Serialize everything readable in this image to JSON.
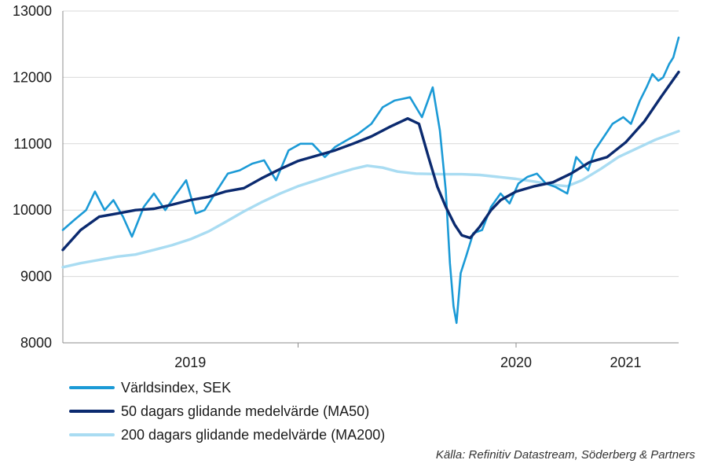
{
  "chart_data": {
    "type": "line",
    "ylim": [
      8000,
      13000
    ],
    "yticks": [
      "8000",
      "9000",
      "10000",
      "11000",
      "12000",
      "13000"
    ],
    "xlim": [
      "2018-06-01",
      "2021-03-31"
    ],
    "x_labels": [
      {
        "label": "2019",
        "date": "2019-01-01"
      },
      {
        "label": "2020",
        "date": "2020-07-01"
      },
      {
        "label": "2021",
        "date": "2021-01-01"
      }
    ],
    "x_dividers": [
      "2019-07-01",
      "2020-07-01"
    ],
    "grid": "horizontal",
    "legend_position": "bottom",
    "series": [
      {
        "name": "Världsindex, SEK",
        "color": "#1b9ad6",
        "points": [
          [
            "2018-06-01",
            9700
          ],
          [
            "2018-06-20",
            9850
          ],
          [
            "2018-07-10",
            10000
          ],
          [
            "2018-07-25",
            10280
          ],
          [
            "2018-08-10",
            10000
          ],
          [
            "2018-08-25",
            10150
          ],
          [
            "2018-09-10",
            9900
          ],
          [
            "2018-09-25",
            9600
          ],
          [
            "2018-10-15",
            10050
          ],
          [
            "2018-11-01",
            10250
          ],
          [
            "2018-11-20",
            10000
          ],
          [
            "2018-12-05",
            10200
          ],
          [
            "2018-12-25",
            10450
          ],
          [
            "2019-01-10",
            9950
          ],
          [
            "2019-01-25",
            10000
          ],
          [
            "2019-02-15",
            10300
          ],
          [
            "2019-03-05",
            10550
          ],
          [
            "2019-03-25",
            10600
          ],
          [
            "2019-04-15",
            10700
          ],
          [
            "2019-05-05",
            10750
          ],
          [
            "2019-05-25",
            10450
          ],
          [
            "2019-06-15",
            10900
          ],
          [
            "2019-07-05",
            11000
          ],
          [
            "2019-07-25",
            11000
          ],
          [
            "2019-08-15",
            10800
          ],
          [
            "2019-09-01",
            10950
          ],
          [
            "2019-09-20",
            11050
          ],
          [
            "2019-10-10",
            11150
          ],
          [
            "2019-11-01",
            11300
          ],
          [
            "2019-11-20",
            11550
          ],
          [
            "2019-12-10",
            11650
          ],
          [
            "2020-01-05",
            11700
          ],
          [
            "2020-01-25",
            11400
          ],
          [
            "2020-02-12",
            11850
          ],
          [
            "2020-02-24",
            11200
          ],
          [
            "2020-03-05",
            10300
          ],
          [
            "2020-03-12",
            9200
          ],
          [
            "2020-03-18",
            8550
          ],
          [
            "2020-03-23",
            8300
          ],
          [
            "2020-03-30",
            9050
          ],
          [
            "2020-04-08",
            9300
          ],
          [
            "2020-04-20",
            9650
          ],
          [
            "2020-05-05",
            9700
          ],
          [
            "2020-05-20",
            10050
          ],
          [
            "2020-06-05",
            10250
          ],
          [
            "2020-06-20",
            10100
          ],
          [
            "2020-07-05",
            10400
          ],
          [
            "2020-07-20",
            10500
          ],
          [
            "2020-08-05",
            10550
          ],
          [
            "2020-08-20",
            10400
          ],
          [
            "2020-09-05",
            10350
          ],
          [
            "2020-09-25",
            10250
          ],
          [
            "2020-10-10",
            10800
          ],
          [
            "2020-10-30",
            10600
          ],
          [
            "2020-11-10",
            10900
          ],
          [
            "2020-11-25",
            11100
          ],
          [
            "2020-12-10",
            11300
          ],
          [
            "2020-12-28",
            11400
          ],
          [
            "2021-01-10",
            11300
          ],
          [
            "2021-01-25",
            11650
          ],
          [
            "2021-02-05",
            11850
          ],
          [
            "2021-02-15",
            12050
          ],
          [
            "2021-02-25",
            11950
          ],
          [
            "2021-03-05",
            12000
          ],
          [
            "2021-03-15",
            12200
          ],
          [
            "2021-03-22",
            12300
          ],
          [
            "2021-03-31",
            12600
          ]
        ]
      },
      {
        "name": "50 dagars glidande medelvärde (MA50)",
        "color": "#0b2a6f",
        "points": [
          [
            "2018-06-01",
            9400
          ],
          [
            "2018-07-01",
            9700
          ],
          [
            "2018-08-01",
            9900
          ],
          [
            "2018-09-01",
            9950
          ],
          [
            "2018-10-01",
            10000
          ],
          [
            "2018-11-01",
            10020
          ],
          [
            "2018-12-01",
            10080
          ],
          [
            "2019-01-01",
            10150
          ],
          [
            "2019-02-01",
            10200
          ],
          [
            "2019-03-01",
            10280
          ],
          [
            "2019-04-01",
            10330
          ],
          [
            "2019-05-01",
            10480
          ],
          [
            "2019-06-01",
            10620
          ],
          [
            "2019-07-01",
            10740
          ],
          [
            "2019-08-01",
            10820
          ],
          [
            "2019-09-01",
            10900
          ],
          [
            "2019-10-01",
            11000
          ],
          [
            "2019-11-01",
            11110
          ],
          [
            "2019-12-01",
            11250
          ],
          [
            "2020-01-01",
            11380
          ],
          [
            "2020-01-20",
            11300
          ],
          [
            "2020-02-05",
            10800
          ],
          [
            "2020-02-20",
            10350
          ],
          [
            "2020-03-05",
            10050
          ],
          [
            "2020-03-20",
            9780
          ],
          [
            "2020-04-01",
            9620
          ],
          [
            "2020-04-15",
            9580
          ],
          [
            "2020-05-01",
            9750
          ],
          [
            "2020-05-20",
            10000
          ],
          [
            "2020-06-05",
            10150
          ],
          [
            "2020-07-01",
            10280
          ],
          [
            "2020-08-01",
            10360
          ],
          [
            "2020-09-01",
            10420
          ],
          [
            "2020-10-01",
            10550
          ],
          [
            "2020-11-01",
            10720
          ],
          [
            "2020-12-01",
            10800
          ],
          [
            "2021-01-01",
            11020
          ],
          [
            "2021-02-01",
            11330
          ],
          [
            "2021-03-01",
            11700
          ],
          [
            "2021-03-31",
            12080
          ]
        ]
      },
      {
        "name": "200 dagars glidande medelvärde (MA200)",
        "color": "#a9dcf2",
        "points": [
          [
            "2018-06-01",
            9140
          ],
          [
            "2018-07-01",
            9200
          ],
          [
            "2018-08-01",
            9250
          ],
          [
            "2018-09-01",
            9300
          ],
          [
            "2018-10-01",
            9330
          ],
          [
            "2018-11-01",
            9400
          ],
          [
            "2018-12-01",
            9470
          ],
          [
            "2019-01-01",
            9560
          ],
          [
            "2019-02-01",
            9680
          ],
          [
            "2019-03-01",
            9820
          ],
          [
            "2019-04-01",
            9980
          ],
          [
            "2019-05-01",
            10120
          ],
          [
            "2019-06-01",
            10250
          ],
          [
            "2019-07-01",
            10360
          ],
          [
            "2019-08-01",
            10450
          ],
          [
            "2019-09-01",
            10540
          ],
          [
            "2019-10-01",
            10620
          ],
          [
            "2019-10-25",
            10670
          ],
          [
            "2019-11-20",
            10640
          ],
          [
            "2019-12-15",
            10580
          ],
          [
            "2020-01-15",
            10550
          ],
          [
            "2020-03-01",
            10540
          ],
          [
            "2020-04-01",
            10540
          ],
          [
            "2020-05-01",
            10530
          ],
          [
            "2020-06-01",
            10500
          ],
          [
            "2020-07-01",
            10470
          ],
          [
            "2020-08-01",
            10430
          ],
          [
            "2020-09-01",
            10380
          ],
          [
            "2020-09-25",
            10360
          ],
          [
            "2020-10-20",
            10450
          ],
          [
            "2020-11-20",
            10620
          ],
          [
            "2020-12-20",
            10800
          ],
          [
            "2021-01-20",
            10930
          ],
          [
            "2021-02-20",
            11060
          ],
          [
            "2021-03-31",
            11190
          ]
        ]
      }
    ]
  },
  "legend": {
    "items": [
      {
        "label": "Världsindex, SEK",
        "color": "#1b9ad6"
      },
      {
        "label": "50 dagars glidande medelvärde (MA50)",
        "color": "#0b2a6f"
      },
      {
        "label": "200 dagars glidande medelvärde (MA200)",
        "color": "#a9dcf2"
      }
    ]
  },
  "source": "Källa: Refinitiv Datastream, Söderberg & Partners"
}
